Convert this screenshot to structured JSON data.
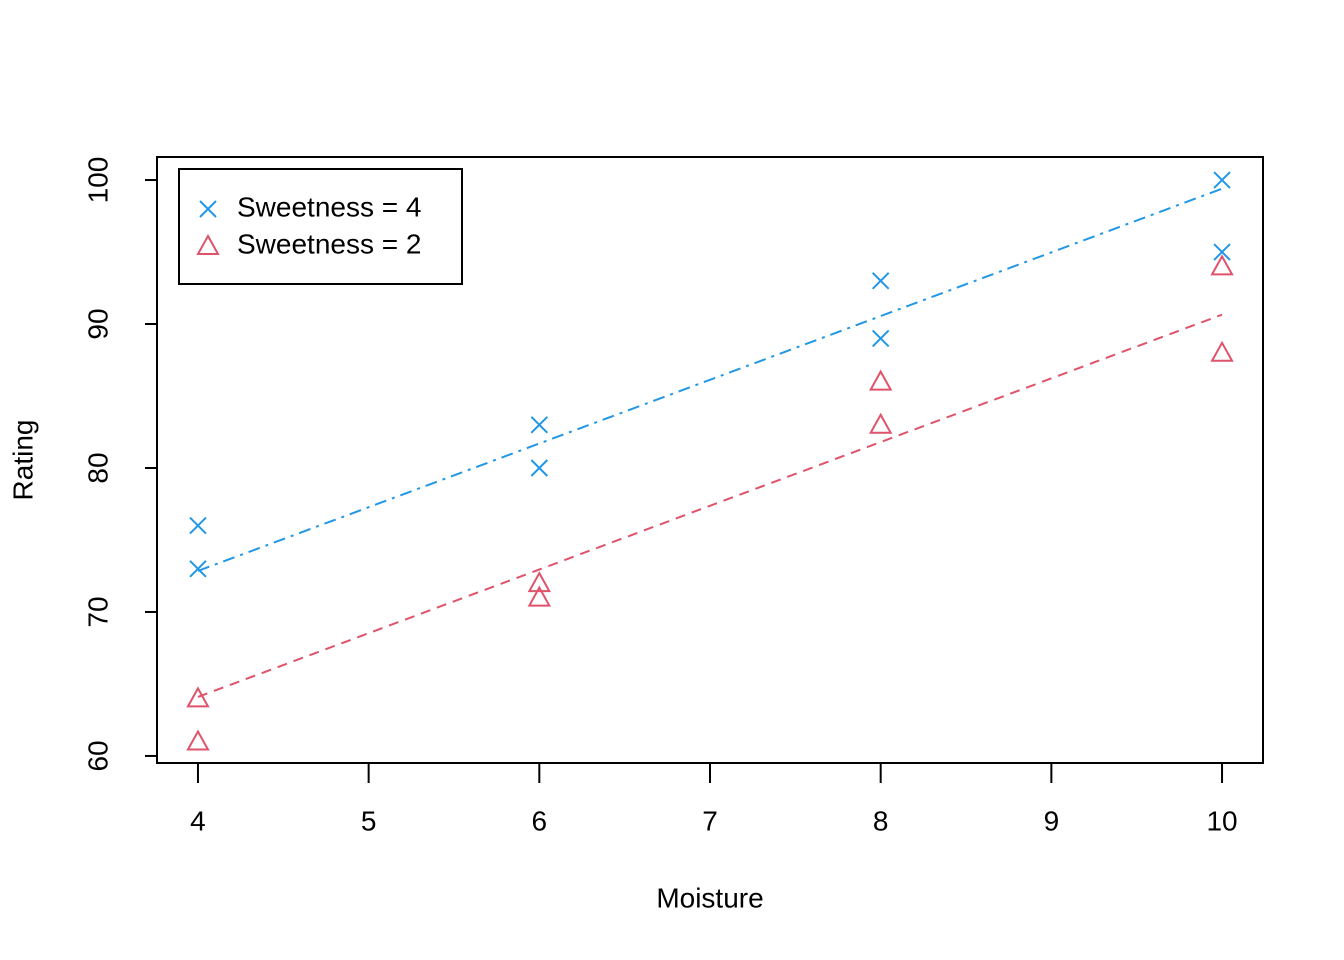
{
  "chart_data": {
    "type": "scatter",
    "x_label": "Moisture",
    "y_label": "Rating",
    "xlim": [
      3.76,
      10.24
    ],
    "ylim": [
      59.51,
      101.6
    ],
    "xticks": [
      4,
      5,
      6,
      7,
      8,
      9,
      10
    ],
    "yticks": [
      60,
      70,
      80,
      90,
      100
    ],
    "legend": "top-left",
    "series": [
      {
        "name": "Sweetness = 4",
        "color": "#2297e6",
        "marker": "x",
        "linestyle": "dotdash",
        "x": [
          4,
          4,
          6,
          6,
          8,
          8,
          10,
          10
        ],
        "values": [
          73,
          76,
          80,
          83,
          89,
          93,
          95,
          100
        ],
        "fit_x": [
          4,
          10
        ],
        "fit_y": [
          72.85,
          99.4
        ]
      },
      {
        "name": "Sweetness = 2",
        "color": "#df536b",
        "marker": "triangle",
        "linestyle": "dashed",
        "x": [
          4,
          4,
          6,
          6,
          8,
          8,
          10,
          10
        ],
        "values": [
          64,
          61,
          72,
          71,
          86,
          83,
          94,
          88
        ],
        "fit_x": [
          4,
          10
        ],
        "fit_y": [
          64.1,
          90.65
        ]
      }
    ]
  }
}
